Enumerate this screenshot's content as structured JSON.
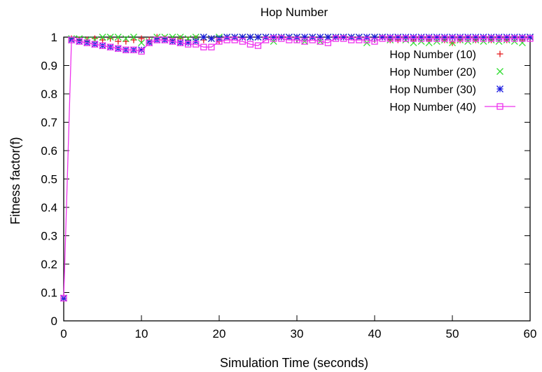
{
  "chart_data": {
    "type": "line",
    "title": "Hop Number",
    "xlabel": "Simulation Time (seconds)",
    "ylabel": "Fitness factor(f)",
    "xlim": [
      0,
      60
    ],
    "ylim": [
      0,
      1
    ],
    "xticks": [
      0,
      10,
      20,
      30,
      40,
      50,
      60
    ],
    "yticks": [
      0,
      0.1,
      0.2,
      0.3,
      0.4,
      0.5,
      0.6,
      0.7,
      0.8,
      0.9,
      1
    ],
    "grid": false,
    "legend": "top-right",
    "series": [
      {
        "name": "Hop Number (10)",
        "color": "#e41a1c",
        "marker": "plus",
        "line": false,
        "x": [
          0,
          1,
          2,
          3,
          4,
          5,
          6,
          7,
          8,
          9,
          10,
          11,
          12,
          13,
          14,
          15,
          16,
          17,
          18,
          19,
          20,
          21,
          22,
          23,
          24,
          25,
          26,
          27,
          28,
          29,
          30,
          31,
          32,
          33,
          34,
          35,
          36,
          37,
          38,
          39,
          40,
          41,
          42,
          43,
          44,
          45,
          46,
          47,
          48,
          49,
          50,
          51,
          52,
          53,
          54,
          55,
          56,
          57,
          58,
          59,
          60
        ],
        "values": [
          0.08,
          0.995,
          0.99,
          0.99,
          0.995,
          0.99,
          0.995,
          0.985,
          0.985,
          0.99,
          0.995,
          0.99,
          1,
          0.995,
          0.99,
          0.995,
          0.99,
          0.995,
          0.99,
          0.995,
          0.985,
          1,
          1,
          1,
          1,
          1,
          1,
          1,
          1,
          1,
          1,
          1,
          1,
          1,
          1,
          1,
          1,
          1,
          1,
          1,
          1,
          1,
          0.99,
          0.99,
          0.995,
          0.99,
          0.995,
          0.99,
          0.995,
          0.99,
          0.98,
          0.99,
          0.995,
          0.99,
          0.995,
          0.99,
          0.995,
          0.99,
          0.995,
          0.99,
          0.995
        ]
      },
      {
        "name": "Hop Number (20)",
        "color": "#33dd33",
        "marker": "x",
        "line": false,
        "x": [
          0,
          1,
          2,
          3,
          4,
          5,
          6,
          7,
          8,
          9,
          10,
          11,
          12,
          13,
          14,
          15,
          16,
          17,
          18,
          19,
          20,
          21,
          22,
          23,
          24,
          25,
          26,
          27,
          28,
          29,
          30,
          31,
          32,
          33,
          34,
          35,
          36,
          37,
          38,
          39,
          40,
          41,
          42,
          43,
          44,
          45,
          46,
          47,
          48,
          49,
          50,
          51,
          52,
          53,
          54,
          55,
          56,
          57,
          58,
          59,
          60
        ],
        "values": [
          0.08,
          0.995,
          0.995,
          0.99,
          0.99,
          1,
          1,
          1,
          0.995,
          1,
          0.98,
          0.985,
          1,
          1,
          1,
          1,
          0.995,
          1,
          1,
          0.995,
          1,
          1,
          1,
          1,
          1,
          1,
          1,
          0.985,
          1,
          1,
          1,
          0.985,
          1,
          0.985,
          1,
          1,
          1,
          1,
          1,
          0.98,
          1,
          1,
          0.99,
          1,
          0.99,
          0.98,
          0.985,
          0.98,
          0.985,
          0.99,
          0.98,
          0.99,
          0.985,
          0.99,
          0.985,
          0.99,
          0.985,
          0.99,
          0.985,
          0.98,
          1
        ]
      },
      {
        "name": "Hop Number (30)",
        "color": "#1a1ae0",
        "marker": "asterisk",
        "line": false,
        "x": [
          0,
          1,
          2,
          3,
          4,
          5,
          6,
          7,
          8,
          9,
          10,
          11,
          12,
          13,
          14,
          15,
          16,
          17,
          18,
          19,
          20,
          21,
          22,
          23,
          24,
          25,
          26,
          27,
          28,
          29,
          30,
          31,
          32,
          33,
          34,
          35,
          36,
          37,
          38,
          39,
          40,
          41,
          42,
          43,
          44,
          45,
          46,
          47,
          48,
          49,
          50,
          51,
          52,
          53,
          54,
          55,
          56,
          57,
          58,
          59,
          60
        ],
        "values": [
          0.08,
          0.99,
          0.985,
          0.98,
          0.975,
          0.97,
          0.965,
          0.96,
          0.955,
          0.955,
          0.955,
          0.98,
          0.99,
          0.99,
          0.985,
          0.98,
          0.98,
          0.985,
          1,
          0.995,
          0.995,
          1,
          1,
          1,
          1,
          1,
          1,
          1,
          1,
          1,
          1,
          1,
          1,
          1,
          1,
          1,
          1,
          1,
          1,
          1,
          1,
          1,
          1,
          1,
          1,
          1,
          1,
          1,
          1,
          1,
          1,
          1,
          1,
          1,
          1,
          1,
          1,
          1,
          1,
          1,
          1
        ]
      },
      {
        "name": "Hop Number (40)",
        "color": "#ee33ee",
        "marker": "square",
        "line": true,
        "x": [
          0,
          1,
          2,
          3,
          4,
          5,
          6,
          7,
          8,
          9,
          10,
          11,
          12,
          13,
          14,
          15,
          16,
          17,
          18,
          19,
          20,
          21,
          22,
          23,
          24,
          25,
          26,
          27,
          28,
          29,
          30,
          31,
          32,
          33,
          34,
          35,
          36,
          37,
          38,
          39,
          40,
          41,
          42,
          43,
          44,
          45,
          46,
          47,
          48,
          49,
          50,
          51,
          52,
          53,
          54,
          55,
          56,
          57,
          58,
          59,
          60
        ],
        "values": [
          0.08,
          0.99,
          0.985,
          0.98,
          0.975,
          0.97,
          0.965,
          0.96,
          0.955,
          0.955,
          0.95,
          0.98,
          0.99,
          0.99,
          0.985,
          0.98,
          0.975,
          0.975,
          0.965,
          0.965,
          0.985,
          0.99,
          0.99,
          0.985,
          0.975,
          0.97,
          0.99,
          0.995,
          0.995,
          0.99,
          0.99,
          0.985,
          0.99,
          0.985,
          0.98,
          0.995,
          0.995,
          0.99,
          0.99,
          0.99,
          0.985,
          0.995,
          0.995,
          0.995,
          0.995,
          0.995,
          0.995,
          0.995,
          0.995,
          0.995,
          0.995,
          0.995,
          0.995,
          0.995,
          0.995,
          0.995,
          0.995,
          0.995,
          0.995,
          0.995,
          0.995
        ]
      }
    ]
  }
}
